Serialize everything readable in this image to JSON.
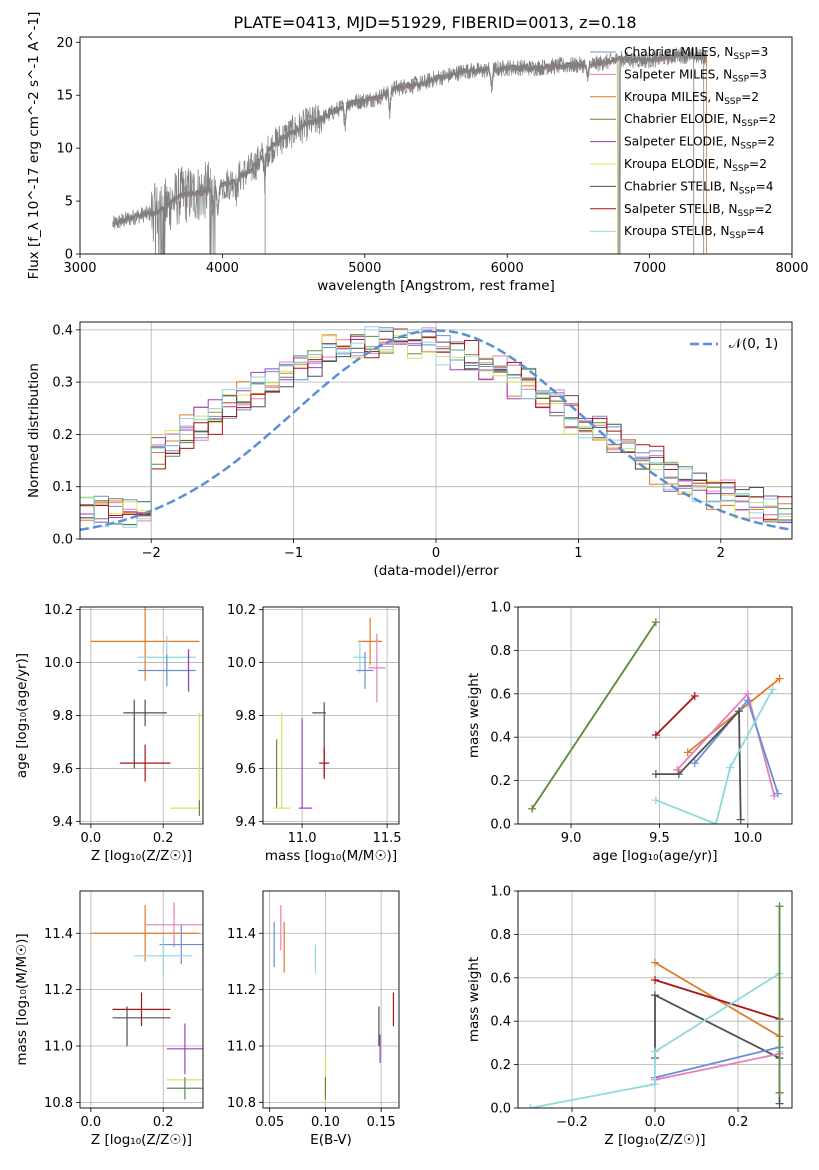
{
  "figure_title": "PLATE=0413, MJD=51929, FIBERID=0013, z=0.18",
  "colors": {
    "Chabrier MILES": "#6b8fd6",
    "Salpeter MILES": "#e77fb8",
    "Kroupa MILES": "#e07b28",
    "Chabrier ELODIE": "#5d8a4a",
    "Salpeter ELODIE": "#9a3fc0",
    "Kroupa ELODIE": "#d4e45a",
    "Chabrier STELIB": "#505050",
    "Salpeter STELIB": "#ab1414",
    "Kroupa STELIB": "#8fd9dc",
    "data": "#808080",
    "normal": "#5a8fd8"
  },
  "chart_data": [
    {
      "type": "line",
      "name": "spectrum",
      "xlabel": "wavelength [Angstrom, rest frame]",
      "ylabel": "Flux [f_λ 10^-17 erg cm^-2 s^-1 A^-1]",
      "xlim": [
        3000,
        8000
      ],
      "ylim": [
        0,
        20.5
      ],
      "xticks": [
        "3000",
        "4000",
        "5000",
        "6000",
        "7000",
        "8000"
      ],
      "yticks": [
        "0",
        "5",
        "10",
        "15",
        "20"
      ],
      "legend_position": "right",
      "legend": [
        {
          "label": "Chabrier MILES, N_SSP=3",
          "main": "Chabrier MILES, N",
          "sub": "SSP",
          "tail": "=3"
        },
        {
          "label": "Salpeter MILES, N_SSP=3",
          "main": "Salpeter MILES, N",
          "sub": "SSP",
          "tail": "=3"
        },
        {
          "label": "Kroupa MILES, N_SSP=2",
          "main": "Kroupa MILES, N",
          "sub": "SSP",
          "tail": "=2"
        },
        {
          "label": "Chabrier ELODIE, N_SSP=2",
          "main": "Chabrier ELODIE, N",
          "sub": "SSP",
          "tail": "=2"
        },
        {
          "label": "Salpeter ELODIE, N_SSP=2",
          "main": "Salpeter ELODIE, N",
          "sub": "SSP",
          "tail": "=2"
        },
        {
          "label": "Kroupa ELODIE, N_SSP=2",
          "main": "Kroupa ELODIE, N",
          "sub": "SSP",
          "tail": "=2"
        },
        {
          "label": "Chabrier STELIB, N_SSP=4",
          "main": "Chabrier STELIB, N",
          "sub": "SSP",
          "tail": "=4"
        },
        {
          "label": "Salpeter STELIB, N_SSP=2",
          "main": "Salpeter STELIB, N",
          "sub": "SSP",
          "tail": "=2"
        },
        {
          "label": "Kroupa STELIB, N_SSP=4",
          "main": "Kroupa STELIB, N",
          "sub": "SSP",
          "tail": "=4"
        }
      ],
      "continuum": {
        "x": [
          3230,
          3400,
          3550,
          3700,
          3850,
          3950,
          4050,
          4200,
          4300,
          4400,
          4500,
          4600,
          4700,
          4800,
          4900,
          5000,
          5100,
          5200,
          5300,
          5400,
          5500,
          5600,
          5700,
          5800,
          5900,
          6000,
          6200,
          6400,
          6600,
          6800,
          7000,
          7200,
          7400
        ],
        "y": [
          2.8,
          3.6,
          4.0,
          5.5,
          5.8,
          6.3,
          6.7,
          8.0,
          9.5,
          10.8,
          11.6,
          12.3,
          12.8,
          13.6,
          14.3,
          14.5,
          14.8,
          15.6,
          15.9,
          16.1,
          16.6,
          16.9,
          17.3,
          17.3,
          17.4,
          17.6,
          17.6,
          17.8,
          17.9,
          18.4,
          18.3,
          18.8,
          18.6
        ]
      },
      "grid": false
    },
    {
      "type": "line",
      "name": "residual_histogram",
      "xlabel": "(data-model)/error",
      "ylabel": "Normed distribution",
      "xlim": [
        -2.5,
        2.5
      ],
      "ylim": [
        0,
        0.415
      ],
      "xticks": [
        "−2",
        "−1",
        "0",
        "1",
        "2"
      ],
      "yticks": [
        "0.0",
        "0.1",
        "0.2",
        "0.3",
        "0.4"
      ],
      "legend_label": "𝒩(0, 1)",
      "legend_position": "top-right",
      "bin_width": 0.1,
      "grid": true
    },
    {
      "type": "scatter",
      "name": "age_vs_Z",
      "xlabel": "Z [log₁₀(Z/Z☉)]",
      "ylabel": "age  [log₁₀(age/yr)]",
      "xlim": [
        -0.03,
        0.31
      ],
      "ylim": [
        9.39,
        10.21
      ],
      "xticks": [
        "0.0",
        "0.2"
      ],
      "yticks": [
        "9.4",
        "9.6",
        "9.8",
        "10.0",
        "10.2"
      ],
      "points": [
        {
          "model": "Kroupa MILES",
          "x": 0.15,
          "xerr": 0.15,
          "y": 10.08,
          "yerr": 0.15
        },
        {
          "model": "Kroupa STELIB",
          "x": 0.21,
          "xerr": 0.08,
          "y": 10.02,
          "yerr": 0.08
        },
        {
          "model": "Chabrier MILES",
          "x": 0.21,
          "xerr": 0.08,
          "y": 9.97,
          "yerr": 0.06
        },
        {
          "model": "Salpeter MILES",
          "x": 0.27,
          "xerr": 0.0,
          "y": 9.97,
          "yerr": 0.08
        },
        {
          "model": "Salpeter ELODIE",
          "x": 0.27,
          "xerr": 0.0,
          "y": 9.97,
          "yerr": 0.08
        },
        {
          "model": "Chabrier STELIB",
          "x": 0.15,
          "xerr": 0.06,
          "y": 9.81,
          "yerr": 0.05
        },
        {
          "model": "Chabrier STELIB",
          "x": 0.12,
          "xerr": 0.0,
          "y": 9.73,
          "yerr": 0.13
        },
        {
          "model": "Salpeter STELIB",
          "x": 0.15,
          "xerr": 0.07,
          "y": 9.62,
          "yerr": 0.07
        },
        {
          "model": "Kroupa ELODIE",
          "x": 0.3,
          "xerr": 0.0,
          "y": 9.62,
          "yerr": 0.19
        },
        {
          "model": "Kroupa ELODIE",
          "x": 0.26,
          "xerr": 0.04,
          "y": 9.45,
          "yerr": 0.0
        },
        {
          "model": "Chabrier ELODIE",
          "x": 0.3,
          "xerr": 0.0,
          "y": 9.45,
          "yerr": 0.03
        }
      ],
      "grid": true
    },
    {
      "type": "scatter",
      "name": "age_vs_mass",
      "xlabel": "mass [log₁₀(M/M☉)]",
      "ylabel": "",
      "xlim": [
        10.77,
        11.57
      ],
      "ylim": [
        9.39,
        10.21
      ],
      "xticks": [
        "11.0",
        "11.5"
      ],
      "yticks": [
        "9.4",
        "9.6",
        "9.8",
        "10.0",
        "10.2"
      ],
      "points": [
        {
          "model": "Kroupa MILES",
          "x": 11.4,
          "xerr": 0.07,
          "y": 10.08,
          "yerr": 0.09
        },
        {
          "model": "Salpeter MILES",
          "x": 11.44,
          "xerr": 0.05,
          "y": 9.98,
          "yerr": 0.13
        },
        {
          "model": "Kroupa STELIB",
          "x": 11.34,
          "xerr": 0.04,
          "y": 10.02,
          "yerr": 0.06
        },
        {
          "model": "Chabrier MILES",
          "x": 11.37,
          "xerr": 0.05,
          "y": 9.97,
          "yerr": 0.07
        },
        {
          "model": "Chabrier STELIB",
          "x": 11.1,
          "xerr": 0.04,
          "y": 9.81,
          "yerr": 0.0
        },
        {
          "model": "Chabrier STELIB",
          "x": 11.13,
          "xerr": 0.0,
          "y": 9.71,
          "yerr": 0.14
        },
        {
          "model": "Salpeter STELIB",
          "x": 11.13,
          "xerr": 0.03,
          "y": 9.62,
          "yerr": 0.06
        },
        {
          "model": "Kroupa ELODIE",
          "x": 10.88,
          "xerr": 0.0,
          "y": 9.63,
          "yerr": 0.18
        },
        {
          "model": "Chabrier ELODIE",
          "x": 10.85,
          "xerr": 0.0,
          "y": 9.58,
          "yerr": 0.13
        },
        {
          "model": "Kroupa ELODIE",
          "x": 10.88,
          "xerr": 0.05,
          "y": 9.45,
          "yerr": 0.0
        },
        {
          "model": "Salpeter ELODIE",
          "x": 11.0,
          "xerr": 0.0,
          "y": 9.62,
          "yerr": 0.17
        },
        {
          "model": "Salpeter ELODIE",
          "x": 11.02,
          "xerr": 0.04,
          "y": 9.45,
          "yerr": 0.0
        }
      ],
      "grid": true
    },
    {
      "type": "line",
      "name": "mass_weight_vs_age",
      "xlabel": "age  [log₁₀(age/yr)]",
      "ylabel": "mass weight",
      "xlim": [
        8.7,
        10.25
      ],
      "ylim": [
        0,
        1.0
      ],
      "xticks": [
        "9.0",
        "9.5",
        "10.0"
      ],
      "yticks": [
        "0.0",
        "0.2",
        "0.4",
        "0.6",
        "0.8",
        "1.0"
      ],
      "series": [
        {
          "model": "Kroupa ELODIE",
          "x": [
            8.78,
            9.48
          ],
          "y": [
            0.07,
            0.93
          ]
        },
        {
          "model": "Chabrier ELODIE",
          "x": [
            8.78,
            9.48
          ],
          "y": [
            0.07,
            0.93
          ]
        },
        {
          "model": "Salpeter STELIB",
          "x": [
            9.48,
            9.7
          ],
          "y": [
            0.41,
            0.59
          ]
        },
        {
          "model": "Kroupa MILES",
          "x": [
            9.66,
            10.18
          ],
          "y": [
            0.33,
            0.67
          ]
        },
        {
          "model": "Salpeter MILES",
          "x": [
            9.6,
            10.0,
            10.15
          ],
          "y": [
            0.25,
            0.6,
            0.13
          ]
        },
        {
          "model": "Chabrier MILES",
          "x": [
            9.7,
            10.0,
            10.17
          ],
          "y": [
            0.28,
            0.57,
            0.14
          ]
        },
        {
          "model": "Chabrier STELIB",
          "x": [
            9.48,
            9.61,
            9.95,
            9.96
          ],
          "y": [
            0.23,
            0.23,
            0.52,
            0.02
          ]
        },
        {
          "model": "Kroupa STELIB",
          "x": [
            9.48,
            9.82,
            9.9,
            10.14
          ],
          "y": [
            0.11,
            0.0,
            0.26,
            0.62
          ]
        }
      ],
      "grid": true
    },
    {
      "type": "scatter",
      "name": "mass_vs_Z",
      "xlabel": "Z [log₁₀(Z/Z☉)]",
      "ylabel": "mass [log₁₀(M/M☉)]",
      "xlim": [
        -0.03,
        0.31
      ],
      "ylim": [
        10.78,
        11.55
      ],
      "xticks": [
        "0.0",
        "0.2"
      ],
      "yticks": [
        "10.8",
        "11.0",
        "11.2",
        "11.4"
      ],
      "points": [
        {
          "model": "Kroupa MILES",
          "x": 0.15,
          "xerr": 0.15,
          "y": 11.4,
          "yerr": 0.1
        },
        {
          "model": "Salpeter MILES",
          "x": 0.23,
          "xerr": 0.08,
          "y": 11.43,
          "yerr": 0.08
        },
        {
          "model": "Chabrier MILES",
          "x": 0.25,
          "xerr": 0.06,
          "y": 11.36,
          "yerr": 0.07
        },
        {
          "model": "Kroupa STELIB",
          "x": 0.2,
          "xerr": 0.08,
          "y": 11.32,
          "yerr": 0.07
        },
        {
          "model": "Salpeter STELIB",
          "x": 0.14,
          "xerr": 0.08,
          "y": 11.13,
          "yerr": 0.06
        },
        {
          "model": "Chabrier STELIB",
          "x": 0.14,
          "xerr": 0.08,
          "y": 11.1,
          "yerr": 0.0
        },
        {
          "model": "Chabrier STELIB",
          "x": 0.1,
          "xerr": 0.0,
          "y": 11.07,
          "yerr": 0.07
        },
        {
          "model": "Salpeter ELODIE",
          "x": 0.26,
          "xerr": 0.05,
          "y": 10.99,
          "yerr": 0.09
        },
        {
          "model": "Kroupa ELODIE",
          "x": 0.26,
          "xerr": 0.05,
          "y": 10.88,
          "yerr": 0.0
        },
        {
          "model": "Chabrier ELODIE",
          "x": 0.26,
          "xerr": 0.05,
          "y": 10.85,
          "yerr": 0.04
        }
      ],
      "grid": true
    },
    {
      "type": "scatter",
      "name": "mass_vs_ebv",
      "xlabel": "E(B-V)",
      "ylabel": "",
      "xlim": [
        0.044,
        0.166
      ],
      "ylim": [
        10.78,
        11.55
      ],
      "xticks": [
        "0.05",
        "0.10",
        "0.15"
      ],
      "yticks": [
        "10.8",
        "11.0",
        "11.2",
        "11.4"
      ],
      "points": [
        {
          "model": "Chabrier MILES",
          "x": 0.054,
          "y": 11.36,
          "yerr": 0.08
        },
        {
          "model": "Salpeter MILES",
          "x": 0.06,
          "y": 11.42,
          "yerr": 0.08
        },
        {
          "model": "Kroupa MILES",
          "x": 0.063,
          "y": 11.35,
          "yerr": 0.09
        },
        {
          "model": "Kroupa STELIB",
          "x": 0.091,
          "y": 11.31,
          "yerr": 0.05
        },
        {
          "model": "Kroupa ELODIE",
          "x": 0.1,
          "y": 10.88,
          "yerr": 0.08
        },
        {
          "model": "Chabrier ELODIE",
          "x": 0.1,
          "y": 10.85,
          "yerr": 0.04
        },
        {
          "model": "Chabrier STELIB",
          "x": 0.148,
          "y": 11.07,
          "yerr": 0.07
        },
        {
          "model": "Salpeter ELODIE",
          "x": 0.149,
          "y": 10.99,
          "yerr": 0.05
        },
        {
          "model": "Salpeter STELIB",
          "x": 0.161,
          "y": 11.13,
          "yerr": 0.06
        }
      ],
      "grid": true
    },
    {
      "type": "line",
      "name": "mass_weight_vs_Z",
      "xlabel": "Z [log₁₀(Z/Z☉)]",
      "ylabel": "mass weight",
      "xlim": [
        -0.33,
        0.33
      ],
      "ylim": [
        0,
        1.0
      ],
      "xticks": [
        "−0.2",
        "0.0",
        "0.2"
      ],
      "yticks": [
        "0.0",
        "0.2",
        "0.4",
        "0.6",
        "0.8",
        "1.0"
      ],
      "series": [
        {
          "model": "Kroupa MILES",
          "x": [
            0.0,
            0.3
          ],
          "y": [
            0.67,
            0.33
          ]
        },
        {
          "model": "Salpeter STELIB",
          "x": [
            0.0,
            0.3
          ],
          "y": [
            0.59,
            0.41
          ]
        },
        {
          "model": "Chabrier STELIB",
          "x": [
            0.0,
            0.0,
            0.3,
            0.3,
            0.3
          ],
          "y": [
            0.23,
            0.52,
            0.23,
            0.07,
            0.02
          ]
        },
        {
          "model": "Chabrier MILES",
          "x": [
            0.0,
            0.3
          ],
          "y": [
            0.14,
            0.28
          ]
        },
        {
          "model": "Salpeter MILES",
          "x": [
            0.0,
            0.3
          ],
          "y": [
            0.13,
            0.25
          ]
        },
        {
          "model": "Kroupa STELIB",
          "x": [
            -0.3,
            0.0,
            0.0,
            0.3,
            0.3
          ],
          "y": [
            0.0,
            0.11,
            0.26,
            0.62,
            0.26
          ]
        },
        {
          "model": "Kroupa ELODIE",
          "x": [
            0.3,
            0.3
          ],
          "y": [
            0.07,
            0.93
          ]
        },
        {
          "model": "Chabrier ELODIE",
          "x": [
            0.3,
            0.3
          ],
          "y": [
            0.07,
            0.93
          ]
        }
      ],
      "grid": true
    }
  ]
}
